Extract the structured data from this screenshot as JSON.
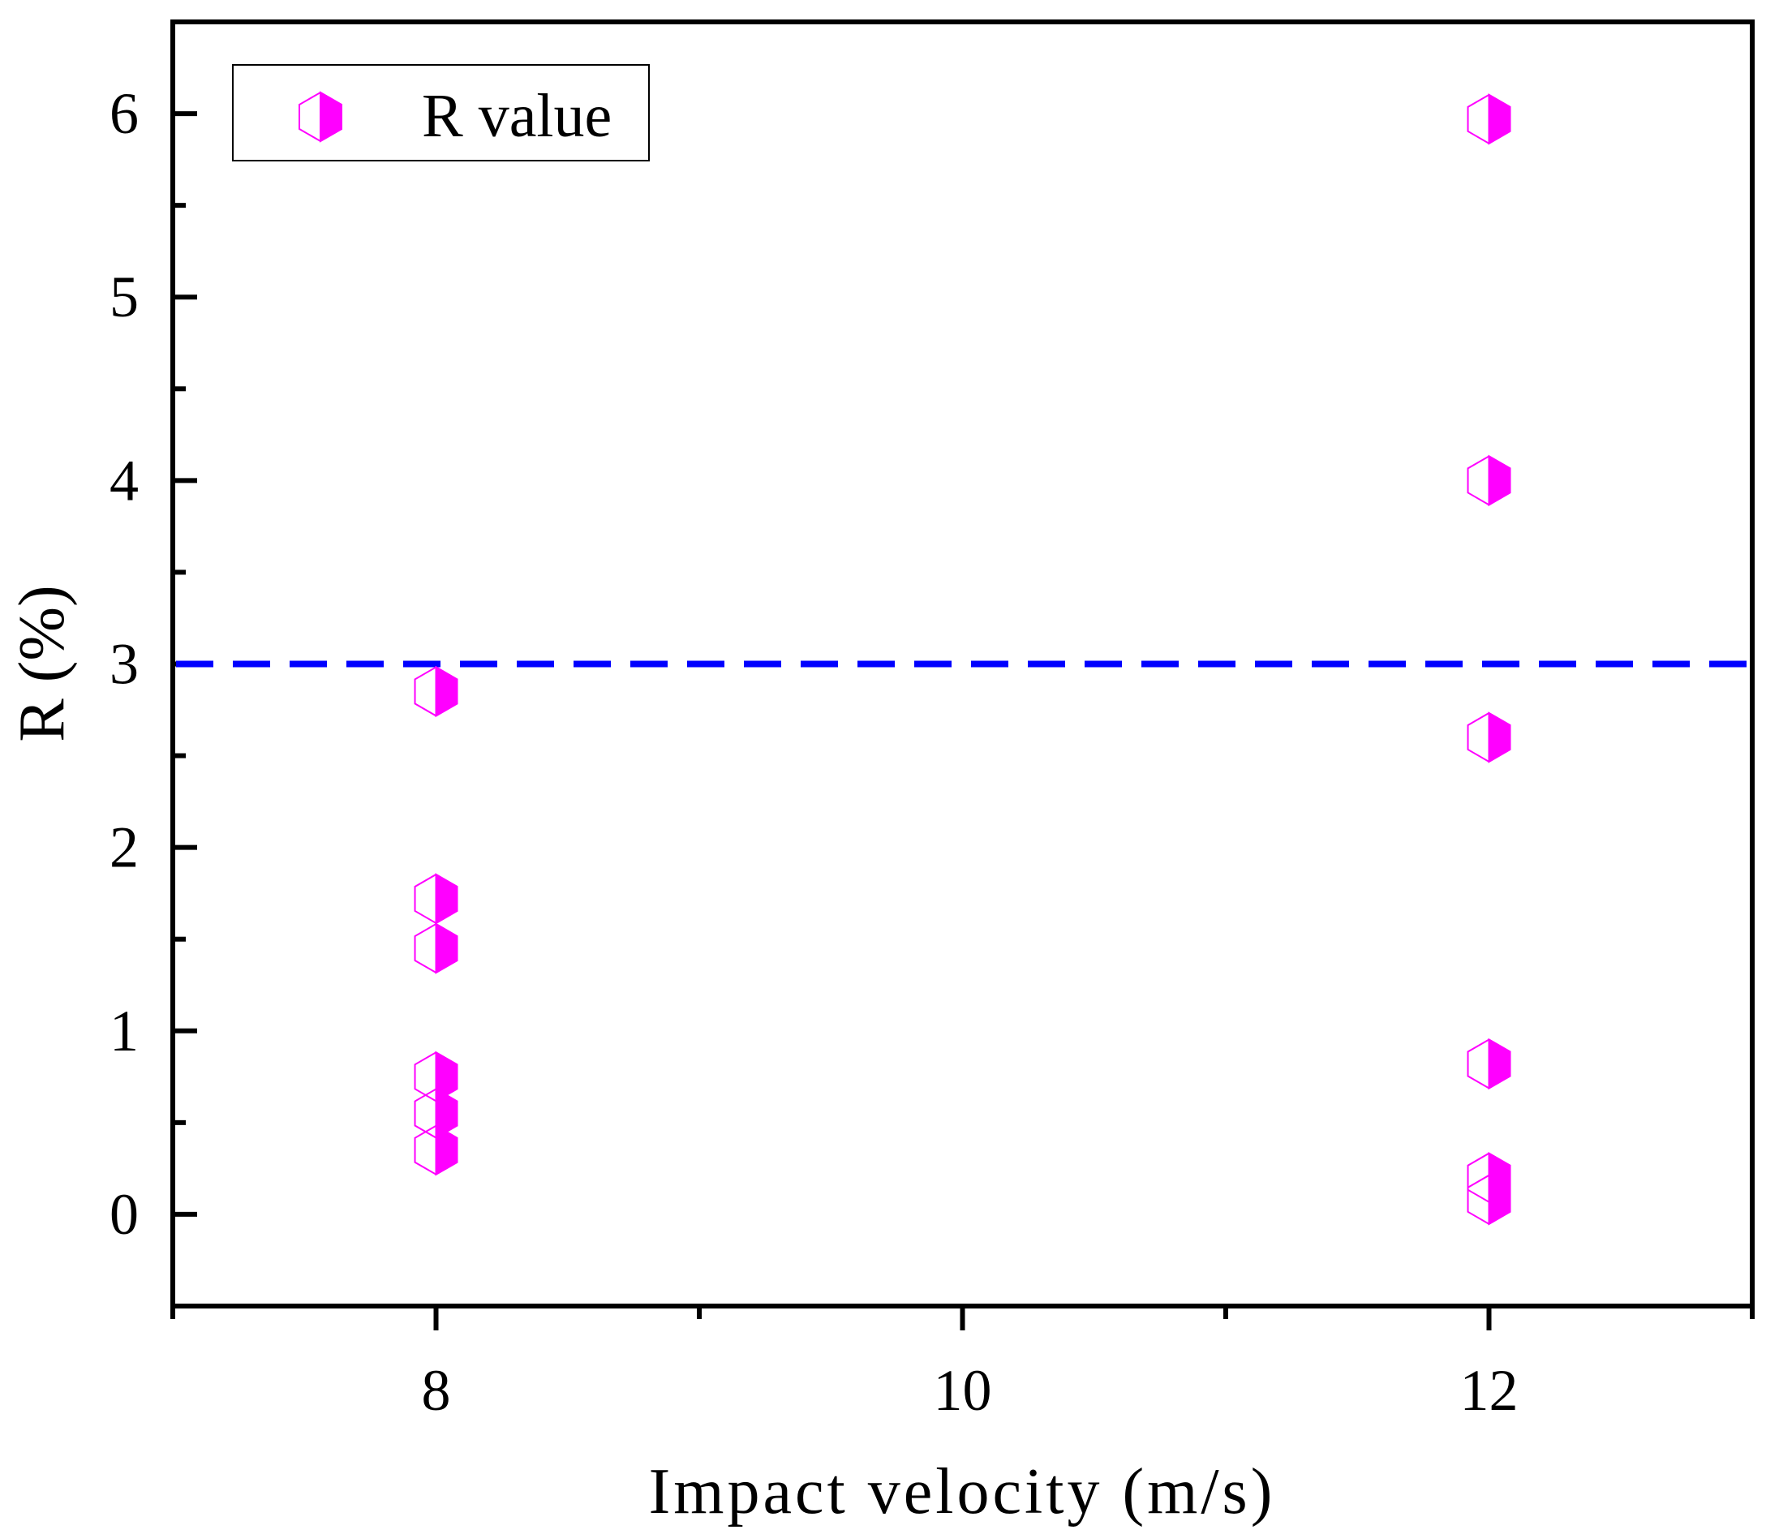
{
  "chart_data": {
    "type": "scatter",
    "title": "",
    "xlabel": "Impact velocity (m/s)",
    "ylabel": "R (%)",
    "xlim": [
      7,
      13
    ],
    "ylim": [
      -0.5,
      6.5
    ],
    "xticks": [
      8,
      10,
      12
    ],
    "xtick_labels": [
      "8",
      "10",
      "12"
    ],
    "yticks": [
      0,
      1,
      2,
      3,
      4,
      5,
      6
    ],
    "ytick_labels": [
      "0",
      "1",
      "2",
      "3",
      "4",
      "5",
      "6"
    ],
    "grid": false,
    "legend": {
      "position": "top-left",
      "entries": [
        "R value"
      ]
    },
    "series": [
      {
        "name": "R value",
        "marker": "half-filled-hexagon",
        "color": "#ff00ff",
        "points": [
          {
            "x": 8,
            "y": 2.85
          },
          {
            "x": 8,
            "y": 1.72
          },
          {
            "x": 8,
            "y": 1.45
          },
          {
            "x": 8,
            "y": 0.75
          },
          {
            "x": 8,
            "y": 0.55
          },
          {
            "x": 8,
            "y": 0.35
          },
          {
            "x": 12,
            "y": 5.97
          },
          {
            "x": 12,
            "y": 4.0
          },
          {
            "x": 12,
            "y": 2.6
          },
          {
            "x": 12,
            "y": 0.82
          },
          {
            "x": 12,
            "y": 0.2
          },
          {
            "x": 12,
            "y": 0.08
          }
        ]
      }
    ],
    "reference_lines": [
      {
        "orientation": "horizontal",
        "y": 3,
        "style": "dashed",
        "color": "#0000ff"
      }
    ]
  }
}
